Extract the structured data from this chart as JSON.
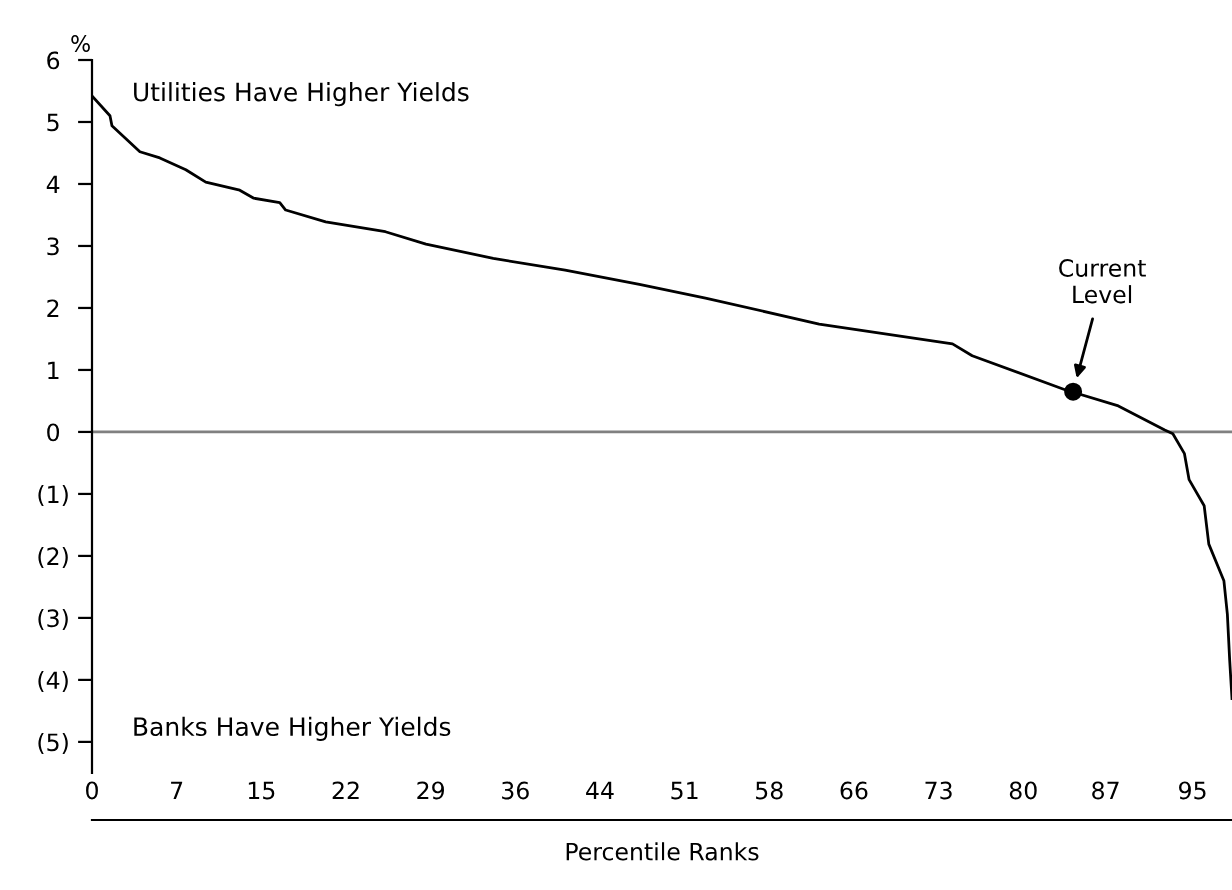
{
  "chart_data": {
    "type": "line",
    "xlabel": "Percentile Ranks",
    "ylabel": "%",
    "xlim": [
      0,
      98.3
    ],
    "ylim": [
      -6.26,
      6
    ],
    "xticks": [
      0,
      {
        "value": 7.3,
        "label": "7"
      },
      {
        "value": 14.6,
        "label": "15"
      },
      {
        "value": 21.9,
        "label": "22"
      },
      {
        "value": 29.2,
        "label": "29"
      },
      {
        "value": 36.5,
        "label": "36"
      },
      {
        "value": 43.8,
        "label": "44"
      },
      {
        "value": 51.1,
        "label": "51"
      },
      {
        "value": 58.4,
        "label": "58"
      },
      {
        "value": 65.7,
        "label": "66"
      },
      {
        "value": 73,
        "label": "73"
      },
      {
        "value": 80.3,
        "label": "80"
      },
      {
        "value": 87.4,
        "label": "87"
      },
      {
        "value": 94.9,
        "label": "95"
      }
    ],
    "yticks": [
      {
        "value": -5,
        "label": "(5)"
      },
      {
        "value": -4,
        "label": "(4)"
      },
      {
        "value": -3,
        "label": "(3)"
      },
      {
        "value": -2,
        "label": "(2)"
      },
      {
        "value": -1,
        "label": "(1)"
      },
      0,
      1,
      2,
      3,
      4,
      5,
      6
    ],
    "grid": false,
    "legend": false,
    "ref_lines": [
      {
        "axis": "y",
        "value": 0,
        "color": "#808080"
      }
    ],
    "annotations": [
      "Utilities Have Higher Yields",
      "Banks Have Higher Yields",
      {
        "text": "Current\nLevel",
        "x": 84.6,
        "y": 0.65
      }
    ],
    "series": [
      {
        "color": "#000000",
        "x": [
          0,
          1.55,
          1.72,
          4.13,
          5.85,
          8.09,
          9.81,
          12.74,
          13.95,
          16.19,
          16.7,
          20.15,
          25.3,
          28.8,
          34.6,
          40.8,
          47.2,
          52.9,
          62.7,
          74.2,
          75.9,
          83.9,
          88.5,
          92.5,
          93.2,
          94.2,
          94.6,
          95.9,
          96.3,
          97.6,
          97.9,
          98.1,
          98.3
        ],
        "values": [
          5.42,
          5.1,
          4.94,
          4.52,
          4.42,
          4.23,
          4.03,
          3.9,
          3.77,
          3.7,
          3.58,
          3.39,
          3.23,
          3.03,
          2.8,
          2.61,
          2.38,
          2.16,
          1.74,
          1.42,
          1.23,
          0.68,
          0.42,
          0.03,
          -0.03,
          -0.35,
          -0.77,
          -1.19,
          -1.81,
          -2.4,
          -2.94,
          -3.68,
          -4.3
        ]
      },
      {
        "type": "scatter",
        "color": "#000000",
        "marker": "circle",
        "x": [
          84.6
        ],
        "values": [
          0.65
        ]
      }
    ]
  }
}
